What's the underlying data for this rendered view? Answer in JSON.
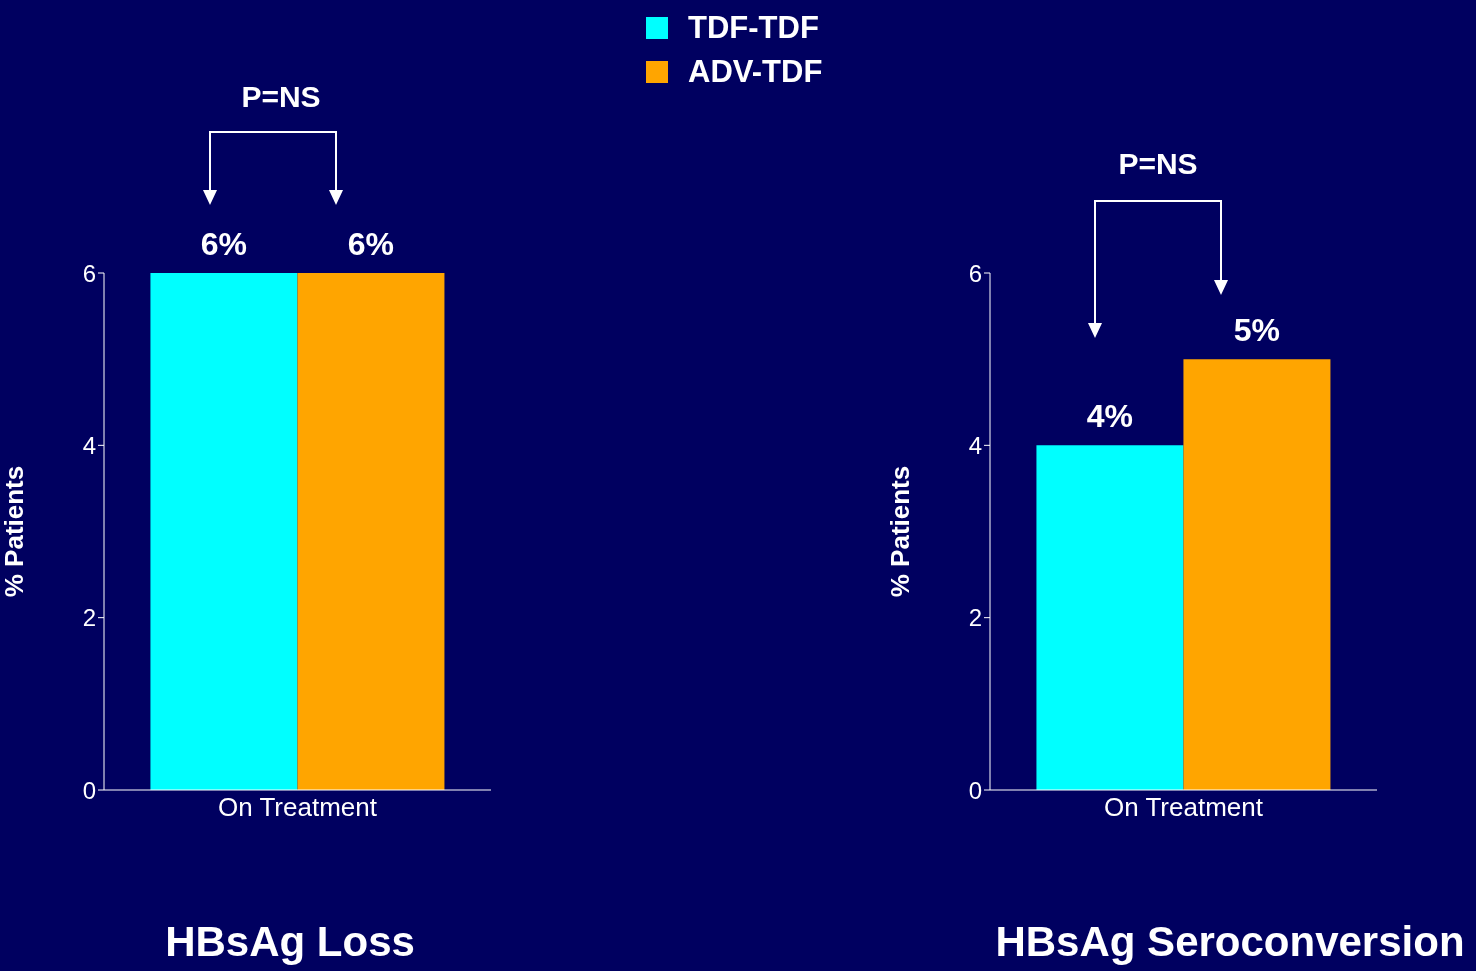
{
  "chart_data": [
    {
      "type": "bar",
      "title": "HBsAg Loss",
      "ylabel": "% Patients",
      "categories": [
        "On Treatment"
      ],
      "ylim": [
        0,
        6
      ],
      "yticks": [
        0,
        2,
        4,
        6
      ],
      "legend": "top right",
      "annotations": [
        "P=NS"
      ],
      "series": [
        {
          "name": "TDF-TDF",
          "color": "#00ffff",
          "values": [
            6
          ],
          "value_labels": [
            "6%"
          ]
        },
        {
          "name": "ADV-TDF",
          "color": "#ffa500",
          "values": [
            6
          ],
          "value_labels": [
            "6%"
          ]
        }
      ]
    },
    {
      "type": "bar",
      "title": "HBsAg Seroconversion",
      "ylabel": "% Patients",
      "categories": [
        "On Treatment"
      ],
      "ylim": [
        0,
        6
      ],
      "yticks": [
        0,
        2,
        4,
        6
      ],
      "annotations": [
        "P=NS"
      ],
      "series": [
        {
          "color": "#00ffff",
          "values": [
            4
          ],
          "value_labels": [
            "4%"
          ]
        },
        {
          "color": "#ffa500",
          "values": [
            5
          ],
          "value_labels": [
            "5%"
          ]
        }
      ]
    }
  ]
}
